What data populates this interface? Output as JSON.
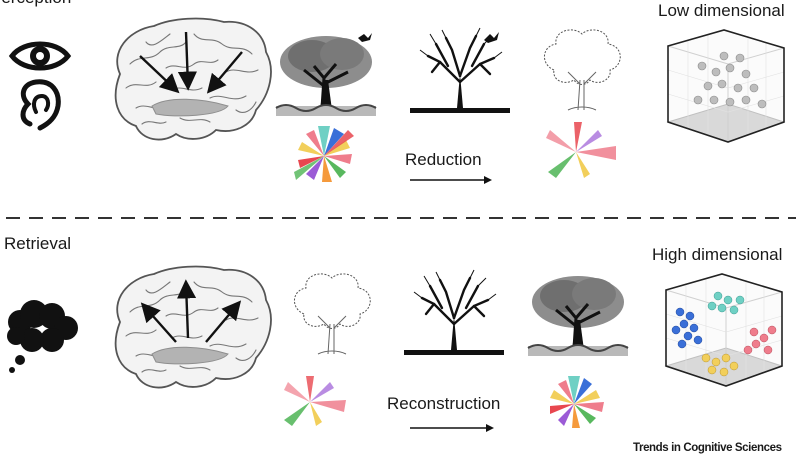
{
  "labels": {
    "perception": "Perception",
    "retrieval": "Retrieval",
    "reduction": "Reduction",
    "reconstruction": "Reconstruction",
    "low_dimensional": "Low dimensional",
    "high_dimensional": "High dimensional"
  },
  "credit": "Trends in Cognitive Sciences",
  "icons": [
    "eye-icon",
    "ear-icon",
    "thought-cloud-icon",
    "brain-icon",
    "tree-icon",
    "bird-icon",
    "arrow-icon",
    "cube-icon"
  ],
  "colors": {
    "ink": "#111111",
    "brain_fill": "#f3f3f3",
    "brain_line": "#555555",
    "hippocampus": "#b3b3b3",
    "red": "#e8474f",
    "teal": "#6fd0c4",
    "blue": "#3a6fd8",
    "yellow": "#f2cf5b",
    "pink": "#ef7d8c",
    "orange": "#f59a3c",
    "green": "#58b85e",
    "purple": "#9b5bd6"
  }
}
